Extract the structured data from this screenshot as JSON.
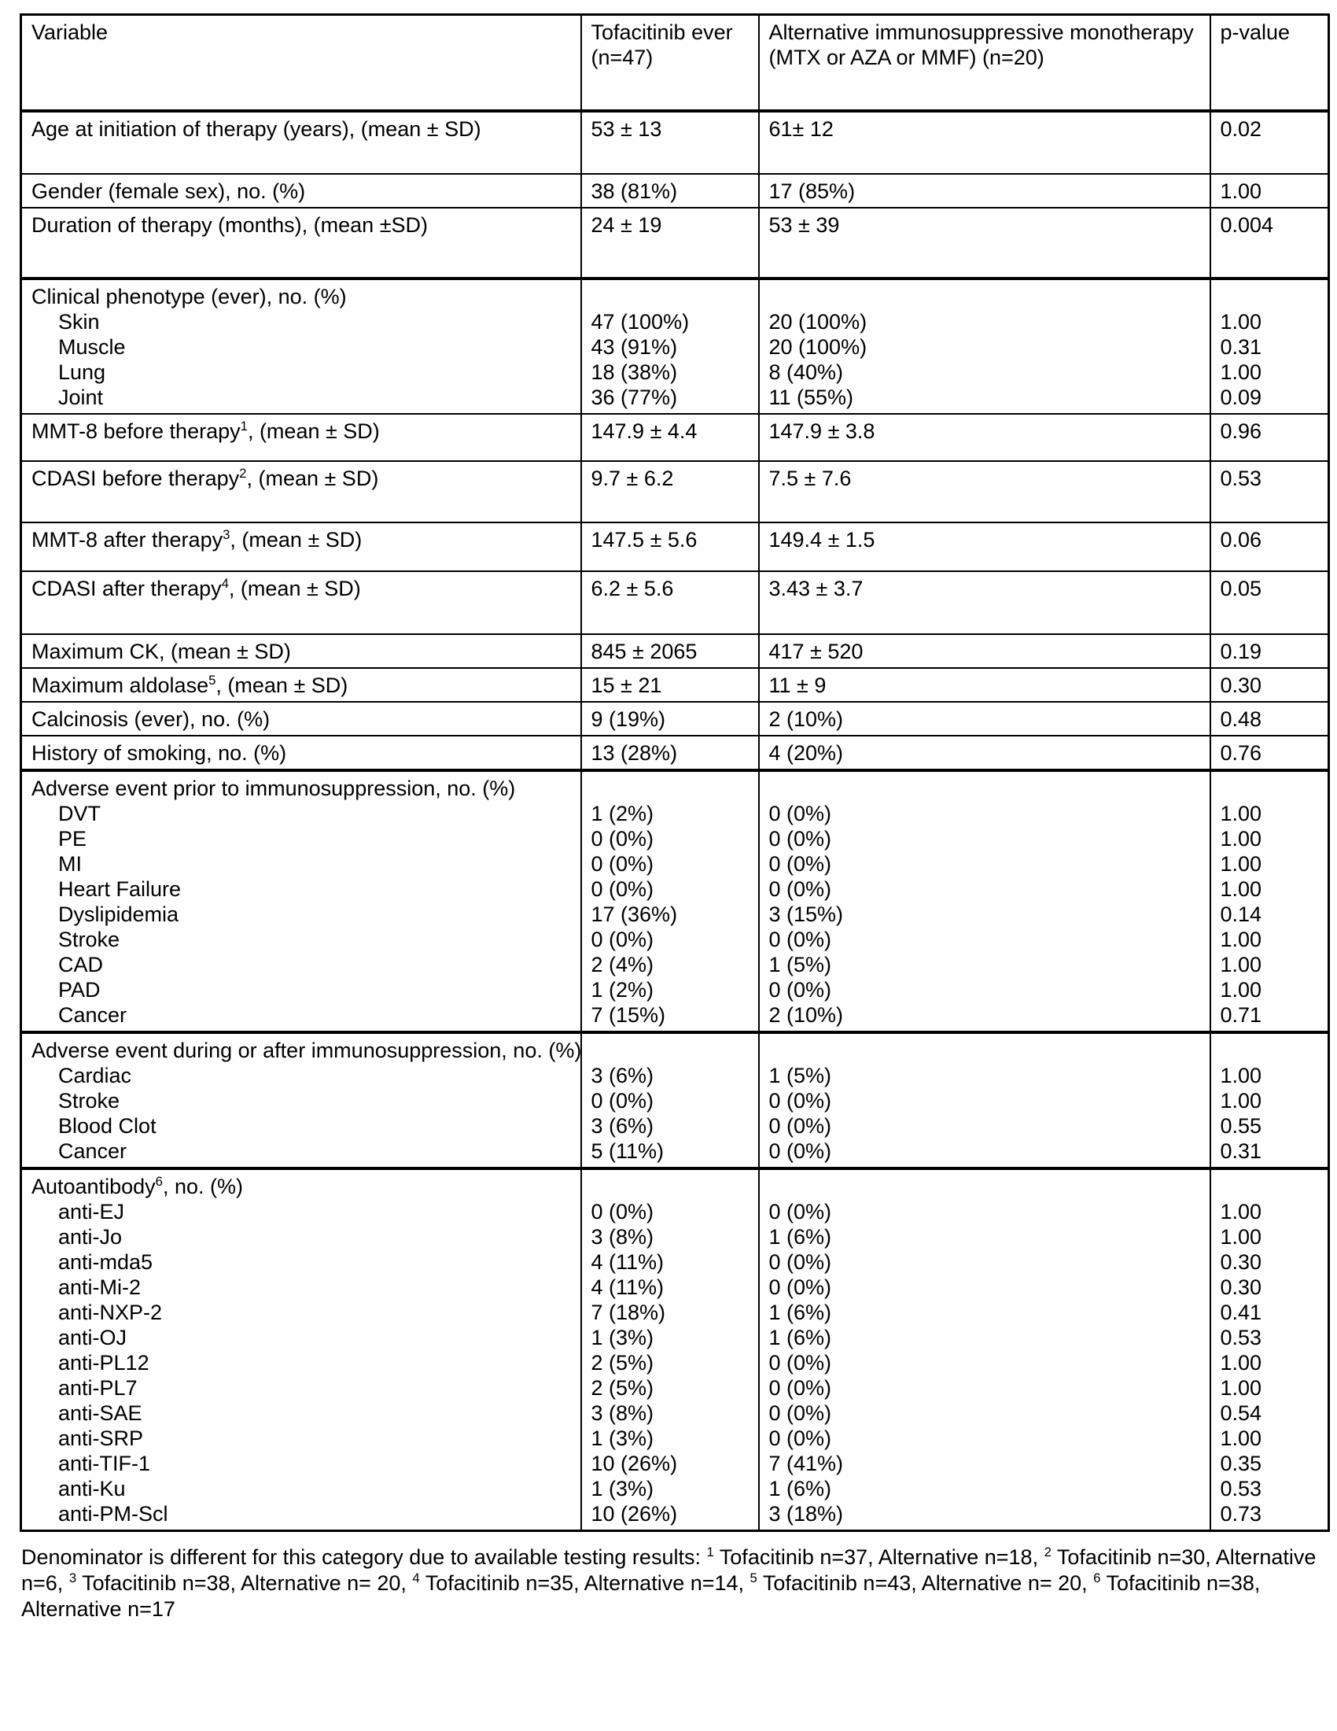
{
  "colors": {
    "text": "#000000",
    "border": "#000000",
    "background": "#ffffff"
  },
  "table": {
    "columns": [
      {
        "id": "variable",
        "label": "Variable"
      },
      {
        "id": "tofacitinib",
        "label": "Tofacitinib ever (n=47)"
      },
      {
        "id": "alternative",
        "label": "Alternative immunosuppressive monotherapy (MTX or AZA or MMF) (n=20)"
      },
      {
        "id": "pvalue",
        "label": "p-value"
      }
    ],
    "rows": [
      {
        "id": "age",
        "type": "simple",
        "label": "Age at initiation of therapy (years), (mean ± SD)",
        "tofacitinib": "53 ± 13",
        "alternative": "61± 12",
        "pvalue": "0.02"
      },
      {
        "id": "gender",
        "type": "simple",
        "label": "Gender (female sex), no. (%)",
        "tofacitinib": "38 (81%)",
        "alternative": "17 (85%)",
        "pvalue": "1.00"
      },
      {
        "id": "duration",
        "type": "simple",
        "label": "Duration of therapy (months), (mean ±SD)",
        "tofacitinib": "24 ± 19",
        "alternative": "53 ± 39",
        "pvalue": "0.004"
      },
      {
        "id": "phenotype",
        "type": "group",
        "label": "Clinical phenotype (ever), no. (%)",
        "items": [
          {
            "label": "Skin",
            "tofacitinib": "47 (100%)",
            "alternative": "20 (100%)",
            "pvalue": "1.00"
          },
          {
            "label": "Muscle",
            "tofacitinib": "43 (91%)",
            "alternative": "20 (100%)",
            "pvalue": "0.31"
          },
          {
            "label": "Lung",
            "tofacitinib": "18 (38%)",
            "alternative": "8 (40%)",
            "pvalue": "1.00"
          },
          {
            "label": "Joint",
            "tofacitinib": "36 (77%)",
            "alternative": "11 (55%)",
            "pvalue": "0.09"
          }
        ]
      },
      {
        "id": "mmt8_before",
        "type": "simple",
        "label": "MMT-8 before therapy^1, (mean ± SD)",
        "tofacitinib": "147.9 ± 4.4",
        "alternative": "147.9 ± 3.8",
        "pvalue": "0.96"
      },
      {
        "id": "cdasi_before",
        "type": "simple",
        "label": "CDASI before therapy^2, (mean ± SD)",
        "tofacitinib": "9.7 ± 6.2",
        "alternative": "7.5 ± 7.6",
        "pvalue": "0.53"
      },
      {
        "id": "mmt8_after",
        "type": "simple",
        "label": "MMT-8 after therapy^3, (mean ± SD)",
        "tofacitinib": "147.5 ± 5.6",
        "alternative": "149.4 ± 1.5",
        "pvalue": "0.06"
      },
      {
        "id": "cdasi_after",
        "type": "simple",
        "label": "CDASI after therapy^4, (mean ± SD)",
        "tofacitinib": "6.2 ± 5.6",
        "alternative": "3.43 ± 3.7",
        "pvalue": "0.05"
      },
      {
        "id": "max_ck",
        "type": "simple",
        "label": "Maximum CK, (mean ± SD)",
        "tofacitinib": "845 ± 2065",
        "alternative": "417 ± 520",
        "pvalue": "0.19"
      },
      {
        "id": "max_aldolase",
        "type": "simple",
        "label": "Maximum aldolase^5, (mean ± SD)",
        "tofacitinib": "15 ± 21",
        "alternative": "11 ± 9",
        "pvalue": "0.30"
      },
      {
        "id": "calcinosis",
        "type": "simple",
        "label": "Calcinosis (ever), no. (%)",
        "tofacitinib": "9 (19%)",
        "alternative": "2 (10%)",
        "pvalue": "0.48"
      },
      {
        "id": "smoking",
        "type": "simple",
        "label": "History of smoking, no. (%)",
        "tofacitinib": "13 (28%)",
        "alternative": "4 (20%)",
        "pvalue": "0.76"
      },
      {
        "id": "ae_prior",
        "type": "group",
        "label": "Adverse event prior to immunosuppression, no. (%)",
        "items": [
          {
            "label": "DVT",
            "tofacitinib": "1 (2%)",
            "alternative": "0 (0%)",
            "pvalue": "1.00"
          },
          {
            "label": "PE",
            "tofacitinib": "0 (0%)",
            "alternative": "0 (0%)",
            "pvalue": "1.00"
          },
          {
            "label": "MI",
            "tofacitinib": "0 (0%)",
            "alternative": "0 (0%)",
            "pvalue": "1.00"
          },
          {
            "label": "Heart Failure",
            "tofacitinib": "0 (0%)",
            "alternative": "0 (0%)",
            "pvalue": "1.00"
          },
          {
            "label": "Dyslipidemia",
            "tofacitinib": "17 (36%)",
            "alternative": "3 (15%)",
            "pvalue": "0.14"
          },
          {
            "label": "Stroke",
            "tofacitinib": "0 (0%)",
            "alternative": "0 (0%)",
            "pvalue": "1.00"
          },
          {
            "label": "CAD",
            "tofacitinib": "2 (4%)",
            "alternative": "1 (5%)",
            "pvalue": "1.00"
          },
          {
            "label": "PAD",
            "tofacitinib": "1 (2%)",
            "alternative": "0 (0%)",
            "pvalue": "1.00"
          },
          {
            "label": "Cancer",
            "tofacitinib": "7 (15%)",
            "alternative": "2 (10%)",
            "pvalue": "0.71"
          }
        ]
      },
      {
        "id": "ae_during",
        "type": "group",
        "label": "Adverse event during or after immunosuppression, no. (%)",
        "items": [
          {
            "label": "Cardiac",
            "tofacitinib": "3 (6%)",
            "alternative": "1 (5%)",
            "pvalue": "1.00"
          },
          {
            "label": "Stroke",
            "tofacitinib": "0 (0%)",
            "alternative": "0 (0%)",
            "pvalue": "1.00"
          },
          {
            "label": "Blood Clot",
            "tofacitinib": "3 (6%)",
            "alternative": "0 (0%)",
            "pvalue": "0.55"
          },
          {
            "label": "Cancer",
            "tofacitinib": "5 (11%)",
            "alternative": "0 (0%)",
            "pvalue": "0.31"
          }
        ]
      },
      {
        "id": "autoantibody",
        "type": "group",
        "label": "Autoantibody^6, no. (%)",
        "items": [
          {
            "label": "anti-EJ",
            "tofacitinib": "0 (0%)",
            "alternative": "0 (0%)",
            "pvalue": "1.00"
          },
          {
            "label": "anti-Jo",
            "tofacitinib": "3 (8%)",
            "alternative": "1 (6%)",
            "pvalue": "1.00"
          },
          {
            "label": "anti-mda5",
            "tofacitinib": "4 (11%)",
            "alternative": "0 (0%)",
            "pvalue": "0.30"
          },
          {
            "label": "anti-Mi-2",
            "tofacitinib": "4 (11%)",
            "alternative": "0 (0%)",
            "pvalue": "0.30"
          },
          {
            "label": "anti-NXP-2",
            "tofacitinib": "7 (18%)",
            "alternative": "1 (6%)",
            "pvalue": "0.41"
          },
          {
            "label": "anti-OJ",
            "tofacitinib": "1 (3%)",
            "alternative": "1 (6%)",
            "pvalue": "0.53"
          },
          {
            "label": "anti-PL12",
            "tofacitinib": "2 (5%)",
            "alternative": "0 (0%)",
            "pvalue": "1.00"
          },
          {
            "label": "anti-PL7",
            "tofacitinib": "2 (5%)",
            "alternative": "0 (0%)",
            "pvalue": "1.00"
          },
          {
            "label": "anti-SAE",
            "tofacitinib": "3 (8%)",
            "alternative": "0 (0%)",
            "pvalue": "0.54"
          },
          {
            "label": "anti-SRP",
            "tofacitinib": "1 (3%)",
            "alternative": "0 (0%)",
            "pvalue": "1.00"
          },
          {
            "label": "anti-TIF-1",
            "tofacitinib": "10 (26%)",
            "alternative": "7 (41%)",
            "pvalue": "0.35"
          },
          {
            "label": "anti-Ku",
            "tofacitinib": "1 (3%)",
            "alternative": "1 (6%)",
            "pvalue": "0.53"
          },
          {
            "label": "anti-PM-Scl",
            "tofacitinib": "10 (26%)",
            "alternative": "3 (18%)",
            "pvalue": "0.73"
          }
        ]
      }
    ]
  },
  "footnote": "Denominator is different for this category due to available testing results: ^1 Tofacitinib n=37, Alternative n=18, ^2 Tofacitinib n=30, Alternative n=6, ^3 Tofacitinib n=38, Alternative n= 20, ^4 Tofacitinib n=35, Alternative n=14, ^5 Tofacitinib n=43, Alternative n= 20, ^6 Tofacitinib n=38, Alternative n=17"
}
